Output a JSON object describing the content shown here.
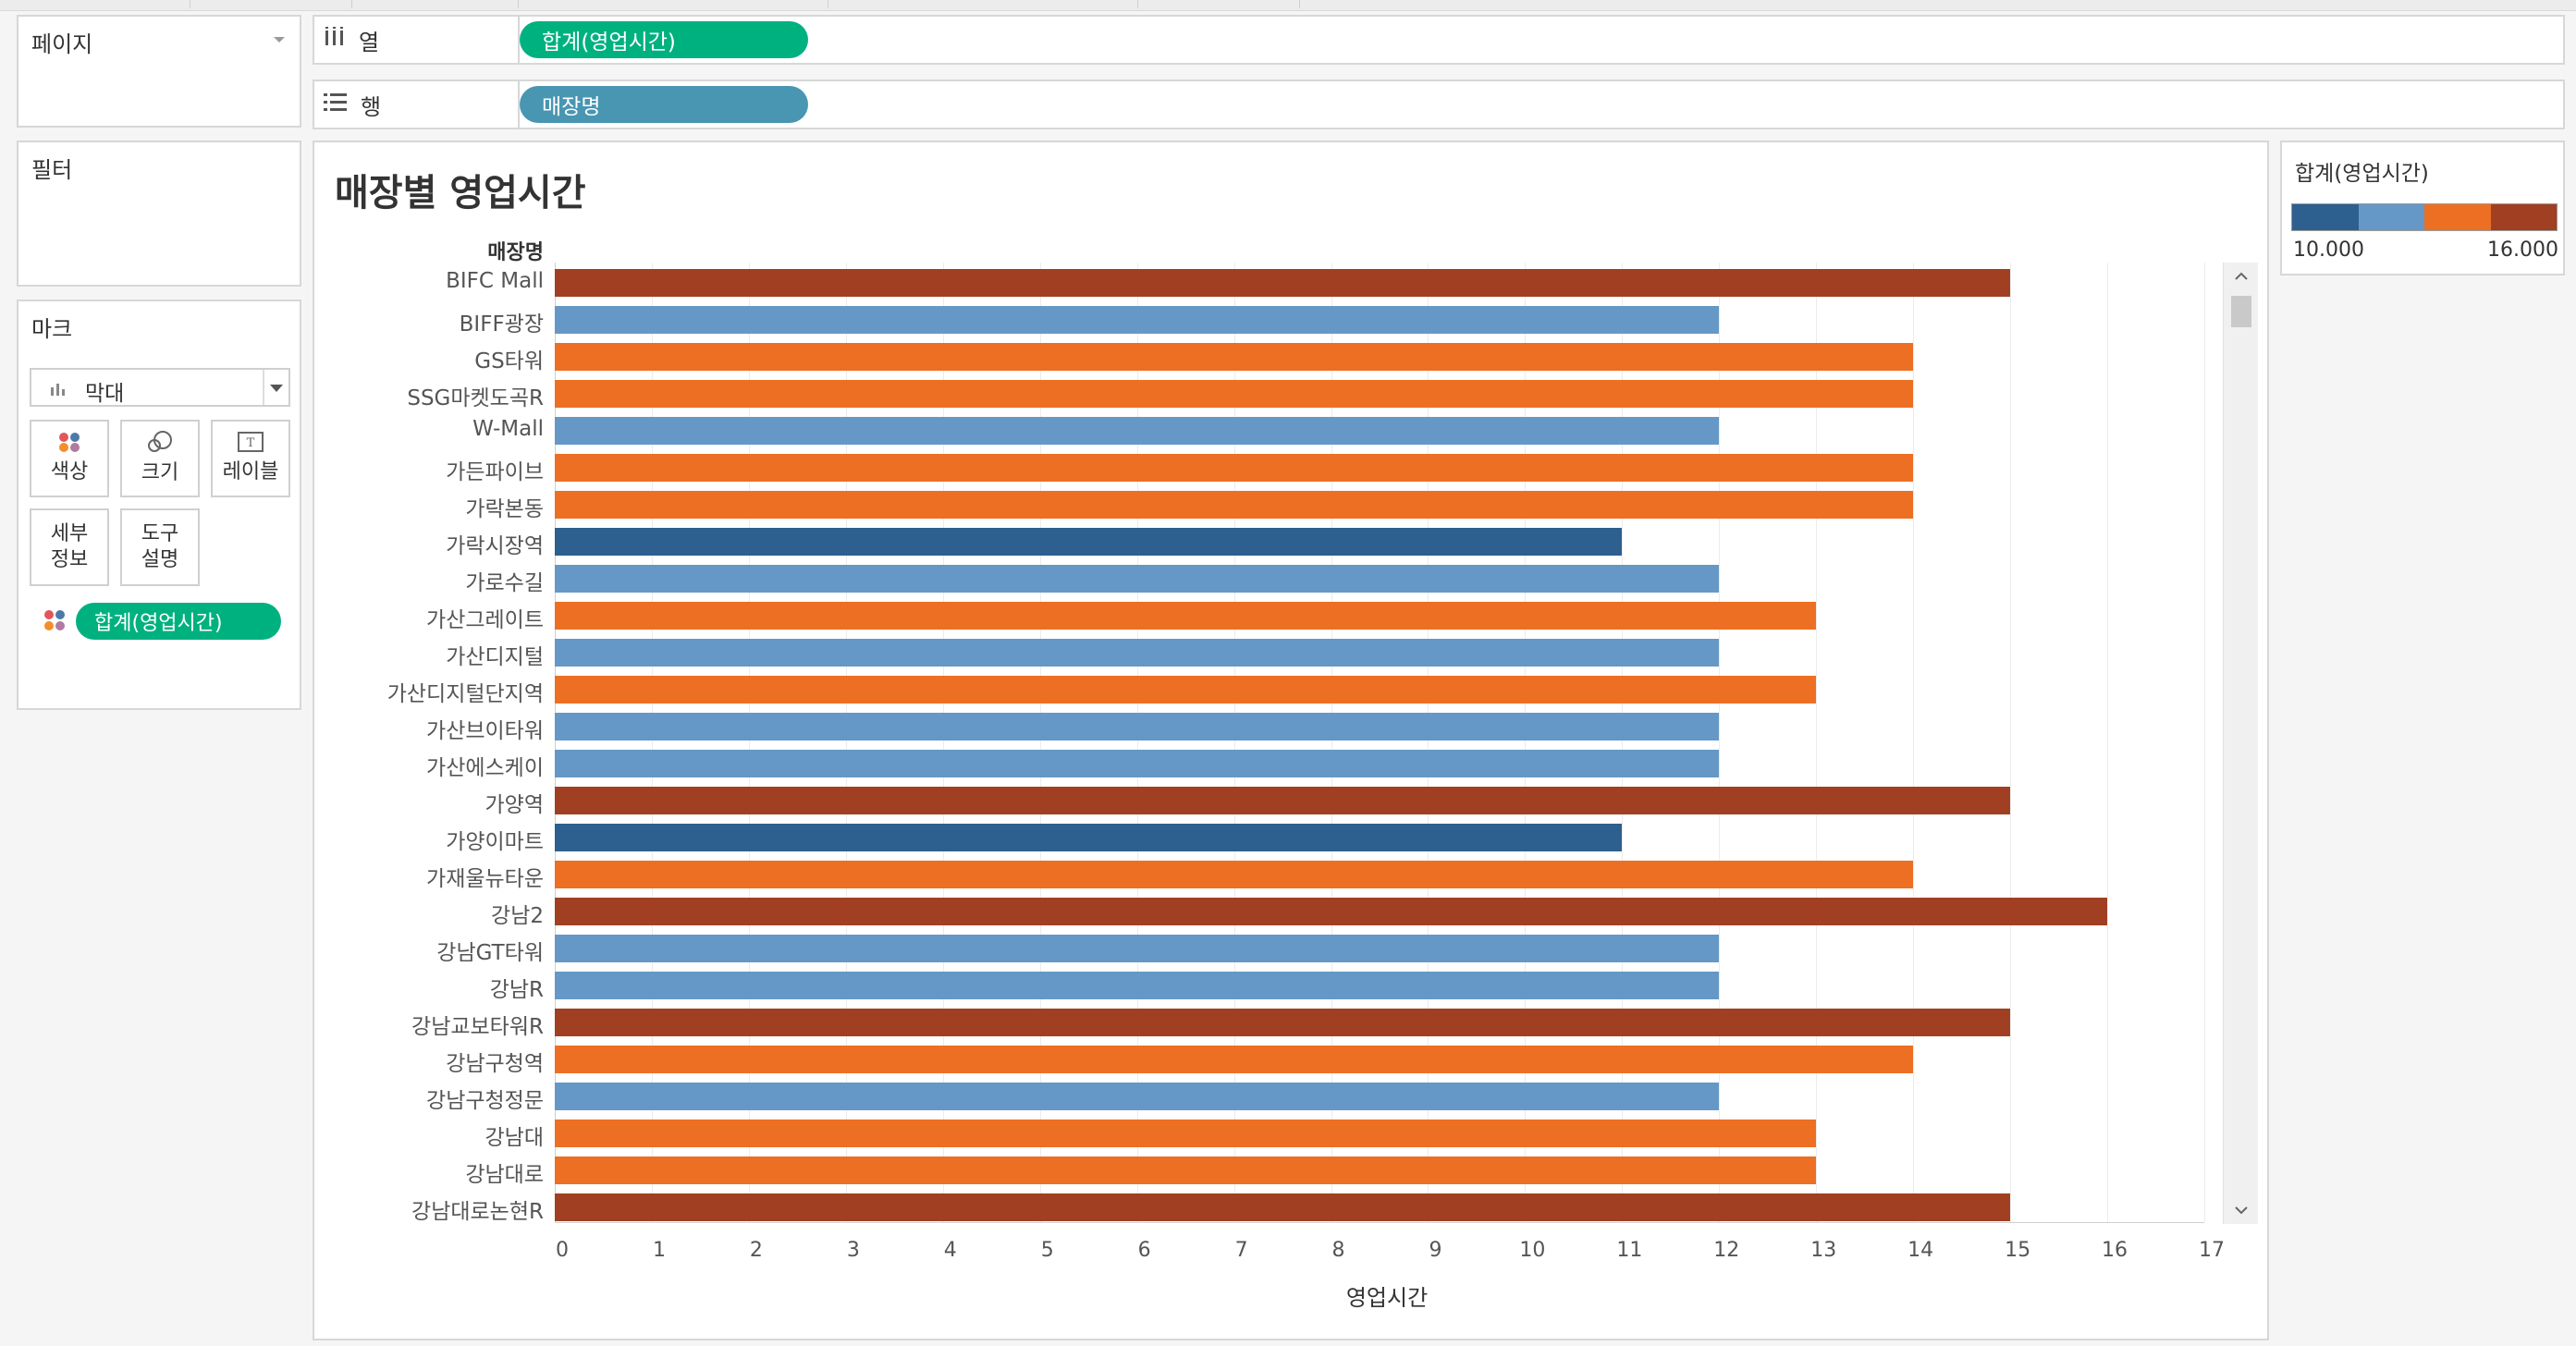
{
  "shelves": {
    "pages_label": "페이지",
    "columns_label": "열",
    "columns_pill": "합계(영업시간)",
    "rows_label": "행",
    "rows_pill": "매장명"
  },
  "filters": {
    "label": "필터"
  },
  "marks": {
    "label": "마크",
    "type_label": "막대",
    "buttons": {
      "color": "색상",
      "size": "크기",
      "label": "레이블",
      "detail_1": "세부",
      "detail_2": "정보",
      "tooltip_1": "도구",
      "tooltip_2": "설명"
    },
    "field_pill": "합계(영업시간)"
  },
  "legend": {
    "title": "합계(영업시간)",
    "min": "10.000",
    "max": "16.000",
    "colors": [
      "#2d5f8f",
      "#6598c6",
      "#ec6f24",
      "#a13f23"
    ]
  },
  "chart_data": {
    "type": "bar",
    "orientation": "horizontal",
    "title": "매장별 영업시간",
    "row_header": "매장명",
    "xlabel": "영업시간",
    "xlim": [
      0,
      17
    ],
    "xticks": [
      "0",
      "1",
      "2",
      "3",
      "4",
      "5",
      "6",
      "7",
      "8",
      "9",
      "10",
      "11",
      "12",
      "13",
      "14",
      "15",
      "16",
      "17"
    ],
    "categories": [
      "BIFC Mall",
      "BIFF광장",
      "GS타워",
      "SSG마켓도곡R",
      "W-Mall",
      "가든파이브",
      "가락본동",
      "가락시장역",
      "가로수길",
      "가산그레이트",
      "가산디지털",
      "가산디지털단지역",
      "가산브이타워",
      "가산에스케이",
      "가양역",
      "가양이마트",
      "가재울뉴타운",
      "강남2",
      "강남GT타워",
      "강남R",
      "강남교보타워R",
      "강남구청역",
      "강남구청정문",
      "강남대",
      "강남대로",
      "강남대로논현R"
    ],
    "values": [
      15,
      12,
      14,
      14,
      12,
      14,
      14,
      11,
      12,
      13,
      12,
      13,
      12,
      12,
      15,
      11,
      14,
      16,
      12,
      12,
      15,
      14,
      12,
      13,
      13,
      15
    ],
    "color_scale": {
      "11": "#2d5f8f",
      "12": "#6598c6",
      "13": "#ec6f24",
      "14": "#ec6f24",
      "15": "#a13f23",
      "16": "#a13f23"
    },
    "grid": true
  }
}
